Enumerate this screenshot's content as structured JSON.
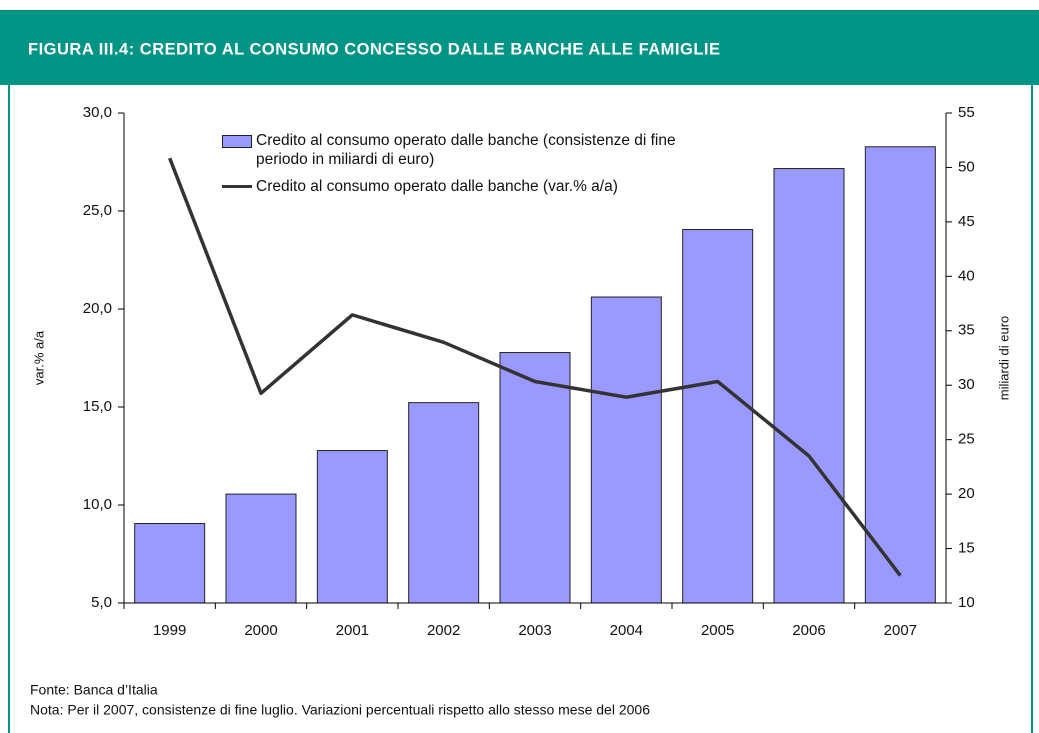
{
  "chart_data": {
    "type": "bar-line",
    "title": "FIGURA III.4: CREDITO AL CONSUMO CONCESSO DALLE BANCHE ALLE FAMIGLIE",
    "categories": [
      "1999",
      "2000",
      "2001",
      "2002",
      "2003",
      "2004",
      "2005",
      "2006",
      "2007"
    ],
    "series": [
      {
        "name": "Credito al consumo operato dalle banche (consistenze di fine periodo in miliardi di euro)",
        "type": "bar",
        "color": "#9999ff",
        "axis": "y2",
        "values": [
          17.3,
          20.0,
          24.0,
          28.4,
          33.0,
          38.1,
          44.3,
          49.9,
          51.9
        ]
      },
      {
        "name": "Credito al consumo operato dalle banche (var.% a/a)",
        "type": "line",
        "color": "#333333",
        "axis": "y",
        "values": [
          27.7,
          15.7,
          19.7,
          18.3,
          16.3,
          15.5,
          16.3,
          12.5,
          6.4
        ]
      }
    ],
    "y_label": "var.% a/a",
    "y2_label": "miliardi di euro",
    "ylim": [
      5,
      30
    ],
    "yticks": [
      {
        "value": 5,
        "label": "5,0"
      },
      {
        "value": 10,
        "label": "10,0"
      },
      {
        "value": 15,
        "label": "15,0"
      },
      {
        "value": 20,
        "label": "20,0"
      },
      {
        "value": 25,
        "label": "25,0"
      },
      {
        "value": 30,
        "label": "30,0"
      }
    ],
    "y2lim": [
      10,
      55
    ],
    "y2ticks": [
      10,
      15,
      20,
      25,
      30,
      35,
      40,
      45,
      50,
      55
    ],
    "notes": [
      "Fonte: Banca d’Italia",
      "Nota: Per il 2007, consistenze di fine luglio. Variazioni percentuali rispetto allo stesso mese del 2006"
    ]
  }
}
